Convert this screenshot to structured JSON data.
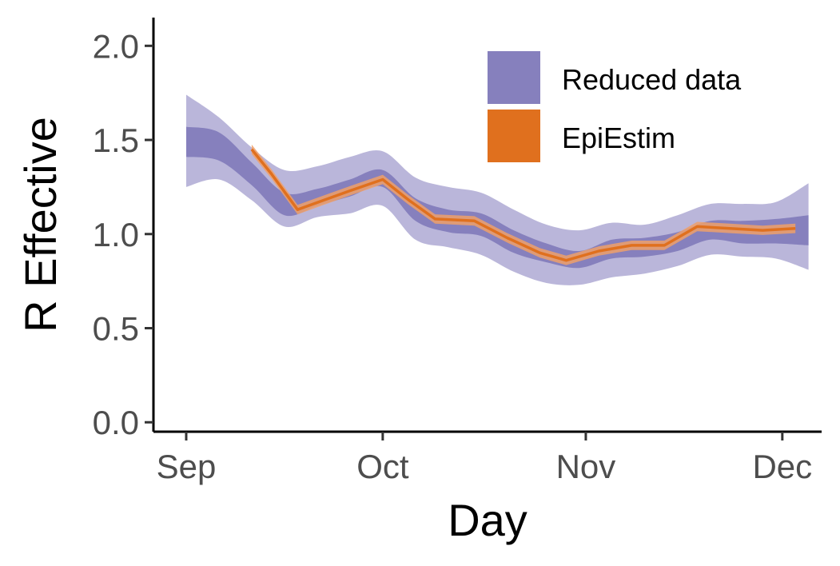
{
  "chart_data": {
    "type": "area",
    "xlabel": "Day",
    "ylabel": "R Effective",
    "xlim": [
      "2020-08-27",
      "2020-12-07"
    ],
    "ylim": [
      -0.05,
      2.15
    ],
    "x_ticks": [
      {
        "label": "Sep",
        "date": "2020-09-01"
      },
      {
        "label": "Oct",
        "date": "2020-10-01"
      },
      {
        "label": "Nov",
        "date": "2020-11-01"
      },
      {
        "label": "Dec",
        "date": "2020-12-01"
      }
    ],
    "y_ticks": [
      0.0,
      0.5,
      1.0,
      1.5,
      2.0
    ],
    "y_tick_labels": [
      "0.0",
      "0.5",
      "1.0",
      "1.5",
      "2.0"
    ],
    "legend": {
      "position": "top-right",
      "entries": [
        {
          "label": "Reduced data",
          "color": "#8680bd"
        },
        {
          "label": "EpiEstim",
          "color": "#e0701e"
        }
      ]
    },
    "series": [
      {
        "name": "Reduced data",
        "color": "#8680bd",
        "outer_color": "#bab6da",
        "x": [
          "2020-09-01",
          "2020-09-06",
          "2020-09-11",
          "2020-09-16",
          "2020-09-21",
          "2020-09-26",
          "2020-10-01",
          "2020-10-06",
          "2020-10-11",
          "2020-10-16",
          "2020-10-21",
          "2020-10-26",
          "2020-10-31",
          "2020-11-05",
          "2020-11-10",
          "2020-11-15",
          "2020-11-20",
          "2020-11-25",
          "2020-11-30",
          "2020-12-05"
        ],
        "y": [
          1.49,
          1.46,
          1.32,
          1.16,
          1.19,
          1.24,
          1.29,
          1.13,
          1.07,
          1.05,
          0.96,
          0.9,
          0.87,
          0.92,
          0.93,
          0.96,
          1.02,
          1.01,
          1.02,
          1.03
        ],
        "inner_lower": [
          1.41,
          1.39,
          1.26,
          1.1,
          1.15,
          1.2,
          1.25,
          1.07,
          1.01,
          0.99,
          0.9,
          0.85,
          0.82,
          0.87,
          0.88,
          0.91,
          0.97,
          0.95,
          0.95,
          0.94
        ],
        "inner_upper": [
          1.57,
          1.54,
          1.38,
          1.22,
          1.24,
          1.29,
          1.34,
          1.19,
          1.13,
          1.11,
          1.02,
          0.95,
          0.91,
          0.97,
          0.98,
          1.01,
          1.07,
          1.07,
          1.08,
          1.1
        ],
        "outer_lower": [
          1.25,
          1.29,
          1.18,
          1.04,
          1.09,
          1.11,
          1.15,
          0.97,
          0.93,
          0.89,
          0.8,
          0.74,
          0.73,
          0.77,
          0.79,
          0.83,
          0.89,
          0.88,
          0.87,
          0.81
        ],
        "outer_upper": [
          1.74,
          1.62,
          1.46,
          1.34,
          1.36,
          1.41,
          1.44,
          1.3,
          1.25,
          1.22,
          1.13,
          1.05,
          1.02,
          1.06,
          1.05,
          1.1,
          1.16,
          1.16,
          1.17,
          1.27
        ]
      },
      {
        "name": "EpiEstim",
        "color": "#e0701e",
        "x": [
          "2020-09-11",
          "2020-09-14",
          "2020-09-18",
          "2020-09-22",
          "2020-09-26",
          "2020-10-01",
          "2020-10-05",
          "2020-10-09",
          "2020-10-15",
          "2020-10-20",
          "2020-10-25",
          "2020-10-29",
          "2020-11-03",
          "2020-11-08",
          "2020-11-13",
          "2020-11-18",
          "2020-11-23",
          "2020-11-28",
          "2020-12-03"
        ],
        "y": [
          1.45,
          1.32,
          1.13,
          1.18,
          1.23,
          1.29,
          1.18,
          1.08,
          1.07,
          0.98,
          0.9,
          0.86,
          0.91,
          0.94,
          0.94,
          1.04,
          1.03,
          1.02,
          1.03
        ],
        "band": 0.025
      }
    ]
  }
}
